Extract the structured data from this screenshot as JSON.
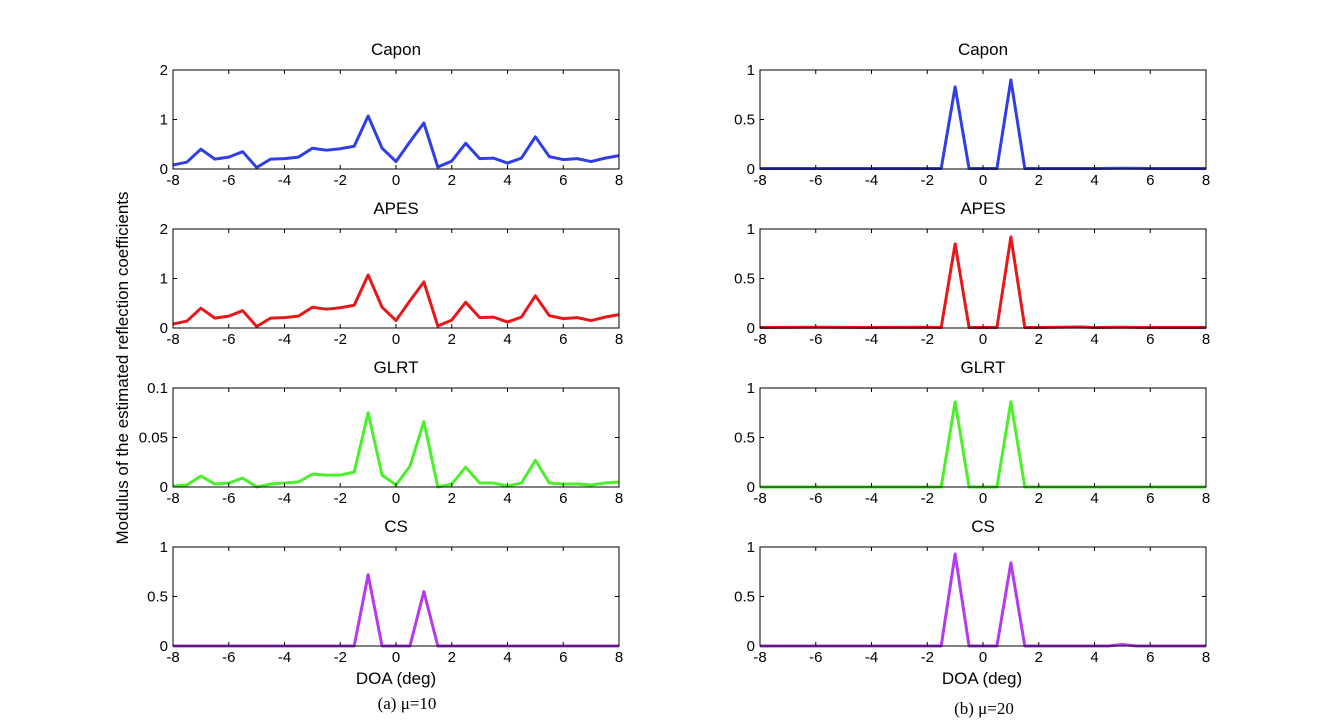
{
  "y_label": "Modulus of the estimated reflection coefficients",
  "x_label": "DOA (deg)",
  "captions": [
    "(a) μ=10",
    "(b) μ=20"
  ],
  "colors": {
    "Capon": "#2f3ee6",
    "APES": "#e8171a",
    "GLRT": "#4cf02a",
    "CS": "#b43af0"
  },
  "chart_data": [
    {
      "type": "line",
      "column": 0,
      "row": 0,
      "title": "Capon",
      "ylim": [
        0,
        2
      ],
      "yticks": [
        0,
        1,
        2
      ],
      "xlim": [
        -8,
        8
      ],
      "xticks": [
        -8,
        -6,
        -4,
        -2,
        0,
        2,
        4,
        6,
        8
      ],
      "x": [
        -8,
        -7.5,
        -7,
        -6.5,
        -6,
        -5.5,
        -5,
        -4.5,
        -4,
        -3.5,
        -3,
        -2.5,
        -2,
        -1.5,
        -1,
        -0.5,
        0,
        0.5,
        1,
        1.5,
        2,
        2.5,
        3,
        3.5,
        4,
        4.5,
        5,
        5.5,
        6,
        6.5,
        7,
        7.5,
        8
      ],
      "values": [
        0.08,
        0.14,
        0.4,
        0.2,
        0.24,
        0.35,
        0.03,
        0.2,
        0.21,
        0.24,
        0.42,
        0.38,
        0.41,
        0.46,
        1.07,
        0.42,
        0.15,
        0.55,
        0.93,
        0.04,
        0.16,
        0.52,
        0.21,
        0.22,
        0.12,
        0.22,
        0.65,
        0.25,
        0.19,
        0.21,
        0.15,
        0.22,
        0.27
      ]
    },
    {
      "type": "line",
      "column": 0,
      "row": 1,
      "title": "APES",
      "ylim": [
        0,
        2
      ],
      "yticks": [
        0,
        1,
        2
      ],
      "xlim": [
        -8,
        8
      ],
      "xticks": [
        -8,
        -6,
        -4,
        -2,
        0,
        2,
        4,
        6,
        8
      ],
      "x": [
        -8,
        -7.5,
        -7,
        -6.5,
        -6,
        -5.5,
        -5,
        -4.5,
        -4,
        -3.5,
        -3,
        -2.5,
        -2,
        -1.5,
        -1,
        -0.5,
        0,
        0.5,
        1,
        1.5,
        2,
        2.5,
        3,
        3.5,
        4,
        4.5,
        5,
        5.5,
        6,
        6.5,
        7,
        7.5,
        8
      ],
      "values": [
        0.08,
        0.14,
        0.4,
        0.2,
        0.24,
        0.35,
        0.03,
        0.2,
        0.21,
        0.24,
        0.42,
        0.38,
        0.41,
        0.46,
        1.07,
        0.42,
        0.15,
        0.55,
        0.93,
        0.04,
        0.16,
        0.52,
        0.21,
        0.22,
        0.12,
        0.22,
        0.65,
        0.25,
        0.19,
        0.21,
        0.15,
        0.22,
        0.27
      ]
    },
    {
      "type": "line",
      "column": 0,
      "row": 2,
      "title": "GLRT",
      "ylim": [
        0,
        0.1
      ],
      "yticks": [
        0,
        0.05,
        0.1
      ],
      "xlim": [
        -8,
        8
      ],
      "xticks": [
        -8,
        -6,
        -4,
        -2,
        0,
        2,
        4,
        6,
        8
      ],
      "x": [
        -8,
        -7.5,
        -7,
        -6.5,
        -6,
        -5.5,
        -5,
        -4.5,
        -4,
        -3.5,
        -3,
        -2.5,
        -2,
        -1.5,
        -1,
        -0.5,
        0,
        0.5,
        1,
        1.5,
        2,
        2.5,
        3,
        3.5,
        4,
        4.5,
        5,
        5.5,
        6,
        6.5,
        7,
        7.5,
        8
      ],
      "values": [
        0.001,
        0.002,
        0.011,
        0.003,
        0.004,
        0.009,
        0.0,
        0.003,
        0.004,
        0.005,
        0.013,
        0.012,
        0.012,
        0.015,
        0.075,
        0.012,
        0.002,
        0.021,
        0.066,
        0.0,
        0.003,
        0.02,
        0.004,
        0.004,
        0.001,
        0.004,
        0.027,
        0.004,
        0.003,
        0.003,
        0.002,
        0.004,
        0.005
      ]
    },
    {
      "type": "line",
      "column": 0,
      "row": 3,
      "title": "CS",
      "ylim": [
        0,
        1
      ],
      "yticks": [
        0,
        0.5,
        1
      ],
      "xlim": [
        -8,
        8
      ],
      "xticks": [
        -8,
        -6,
        -4,
        -2,
        0,
        2,
        4,
        6,
        8
      ],
      "x": [
        -8,
        -1.5,
        -1,
        -0.5,
        0.5,
        1,
        1.5,
        8
      ],
      "values": [
        0,
        0,
        0.72,
        0,
        0,
        0.55,
        0,
        0
      ]
    },
    {
      "type": "line",
      "column": 1,
      "row": 0,
      "title": "Capon",
      "ylim": [
        0,
        1
      ],
      "yticks": [
        0,
        0.5,
        1
      ],
      "xlim": [
        -8,
        8
      ],
      "xticks": [
        -8,
        -6,
        -4,
        -2,
        0,
        2,
        4,
        6,
        8
      ],
      "x": [
        -8,
        -6,
        -4,
        -2,
        -1.5,
        -1,
        -0.5,
        0.5,
        1,
        1.5,
        2,
        4,
        5,
        6,
        8
      ],
      "values": [
        0.005,
        0.005,
        0.005,
        0.005,
        0.005,
        0.83,
        0.005,
        0.005,
        0.9,
        0.005,
        0.005,
        0.005,
        0.008,
        0.005,
        0.005
      ]
    },
    {
      "type": "line",
      "column": 1,
      "row": 1,
      "title": "APES",
      "ylim": [
        0,
        1
      ],
      "yticks": [
        0,
        0.5,
        1
      ],
      "xlim": [
        -8,
        8
      ],
      "xticks": [
        -8,
        -6,
        -4,
        -2,
        0,
        2,
        4,
        6,
        8
      ],
      "x": [
        -8,
        -6,
        -4,
        -2,
        -1.5,
        -1,
        -0.5,
        0.5,
        1,
        1.5,
        2,
        3.5,
        4,
        5,
        6,
        8
      ],
      "values": [
        0.005,
        0.008,
        0.005,
        0.008,
        0.005,
        0.85,
        0.005,
        0.005,
        0.92,
        0.005,
        0.005,
        0.01,
        0.005,
        0.007,
        0.005,
        0.005
      ]
    },
    {
      "type": "line",
      "column": 1,
      "row": 2,
      "title": "GLRT",
      "ylim": [
        0,
        1
      ],
      "yticks": [
        0,
        0.5,
        1
      ],
      "xlim": [
        -8,
        8
      ],
      "xticks": [
        -8,
        -6,
        -4,
        -2,
        0,
        2,
        4,
        6,
        8
      ],
      "x": [
        -8,
        -1.5,
        -1,
        -0.5,
        0.5,
        1,
        1.5,
        8
      ],
      "values": [
        0,
        0,
        0.86,
        0,
        0,
        0.86,
        0,
        0
      ]
    },
    {
      "type": "line",
      "column": 1,
      "row": 3,
      "title": "CS",
      "ylim": [
        0,
        1
      ],
      "yticks": [
        0,
        0.5,
        1
      ],
      "xlim": [
        -8,
        8
      ],
      "xticks": [
        -8,
        -6,
        -4,
        -2,
        0,
        2,
        4,
        6,
        8
      ],
      "x": [
        -8,
        -1.5,
        -1,
        -0.5,
        0.5,
        1,
        1.5,
        4.5,
        5,
        5.5,
        8
      ],
      "values": [
        0,
        0,
        0.93,
        0,
        0,
        0.84,
        0,
        0,
        0.015,
        0,
        0
      ]
    }
  ]
}
